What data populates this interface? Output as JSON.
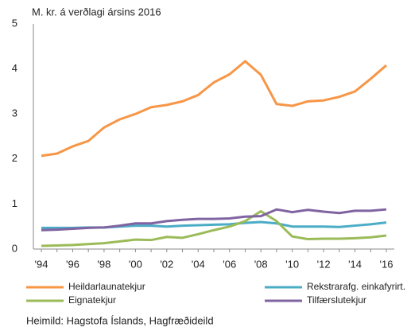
{
  "chart_data": {
    "type": "line",
    "title": "M. kr. á verðlagi ársins 2016",
    "source": "Heimild: Hagstofa Íslands, Hagfræðideild",
    "categories": [
      "'94",
      null,
      "'96",
      null,
      "'98",
      null,
      "'00",
      null,
      "'02",
      null,
      "'04",
      null,
      "'06",
      null,
      "'08",
      null,
      "'10",
      null,
      "'12",
      null,
      "'14",
      null,
      "'16"
    ],
    "series": [
      {
        "name": "Heildarlaunatekjur",
        "color": "#f79646",
        "values": [
          2.07,
          2.12,
          2.28,
          2.4,
          2.7,
          2.88,
          3.0,
          3.15,
          3.2,
          3.28,
          3.42,
          3.7,
          3.88,
          4.17,
          3.87,
          3.22,
          3.18,
          3.28,
          3.3,
          3.38,
          3.5,
          3.78,
          4.08
        ]
      },
      {
        "name": "Rekstrarafg. einkafyrirt.",
        "color": "#4bacc6",
        "values": [
          0.47,
          0.47,
          0.47,
          0.48,
          0.48,
          0.5,
          0.52,
          0.52,
          0.5,
          0.52,
          0.53,
          0.54,
          0.55,
          0.58,
          0.6,
          0.57,
          0.5,
          0.5,
          0.5,
          0.49,
          0.52,
          0.55,
          0.59
        ]
      },
      {
        "name": "Eignatekjur",
        "color": "#9bbb59",
        "values": [
          0.07,
          0.08,
          0.09,
          0.11,
          0.13,
          0.17,
          0.21,
          0.2,
          0.27,
          0.25,
          0.33,
          0.42,
          0.5,
          0.62,
          0.84,
          0.62,
          0.28,
          0.22,
          0.23,
          0.23,
          0.24,
          0.26,
          0.3
        ]
      },
      {
        "name": "Tilfærslutekjur",
        "color": "#8064a2",
        "values": [
          0.42,
          0.43,
          0.45,
          0.47,
          0.48,
          0.52,
          0.57,
          0.57,
          0.62,
          0.65,
          0.67,
          0.67,
          0.68,
          0.72,
          0.73,
          0.88,
          0.82,
          0.87,
          0.83,
          0.8,
          0.85,
          0.85,
          0.88
        ]
      }
    ],
    "ylim": [
      0,
      5
    ],
    "yticks": [
      0,
      1,
      2,
      3,
      4,
      5
    ],
    "grid": false
  }
}
